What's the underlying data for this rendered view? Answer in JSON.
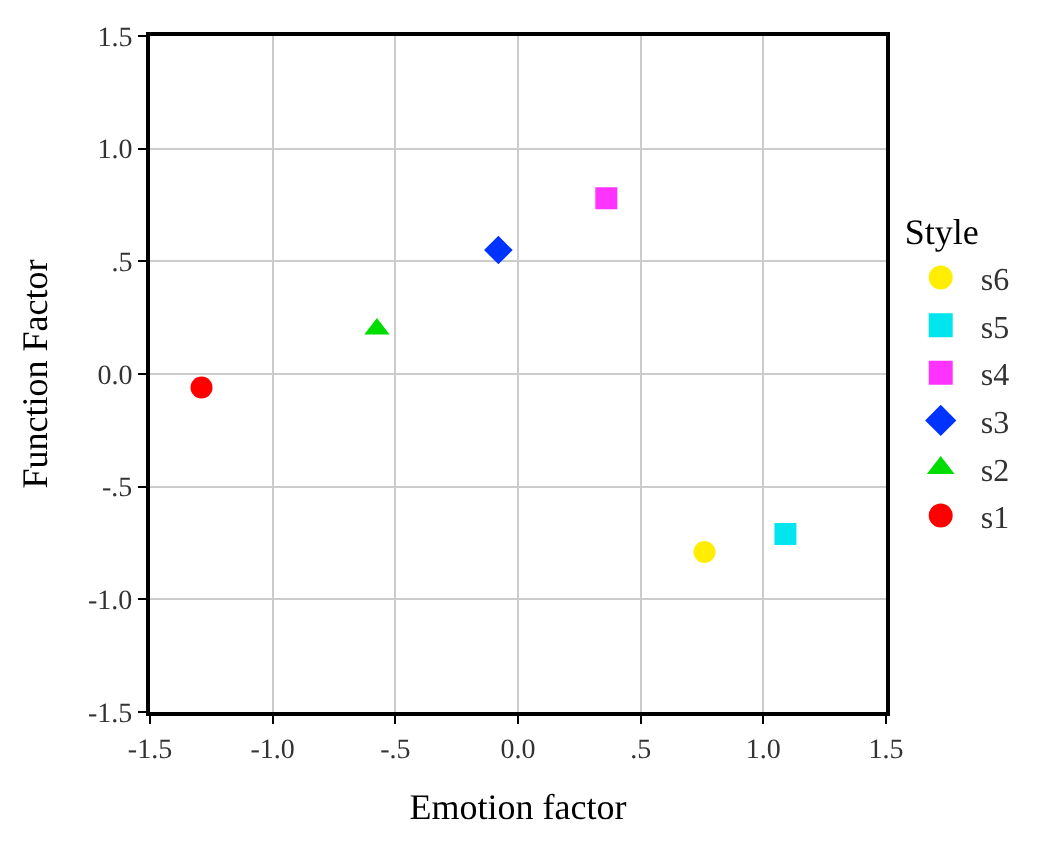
{
  "chart_data": {
    "type": "scatter",
    "xlabel": "Emotion factor",
    "ylabel": "Function Factor",
    "legend_title": "Style",
    "series": [
      {
        "name": "s1",
        "color": "#ff0000",
        "marker": "circle",
        "x": [
          -1.29
        ],
        "values": [
          -0.06
        ]
      },
      {
        "name": "s2",
        "color": "#00dd00",
        "marker": "triangle",
        "x": [
          -0.575
        ],
        "values": [
          0.2
        ]
      },
      {
        "name": "s3",
        "color": "#0033ff",
        "marker": "diamond",
        "x": [
          -0.08
        ],
        "values": [
          0.55
        ]
      },
      {
        "name": "s4",
        "color": "#ff33ff",
        "marker": "square",
        "x": [
          0.36
        ],
        "values": [
          0.78
        ]
      },
      {
        "name": "s5",
        "color": "#00e5ee",
        "marker": "square",
        "x": [
          1.09
        ],
        "values": [
          -0.71
        ]
      },
      {
        "name": "s6",
        "color": "#ffee00",
        "marker": "circle",
        "x": [
          0.76
        ],
        "values": [
          -0.79
        ]
      }
    ],
    "xlim": [
      -1.5,
      1.5
    ],
    "ylim": [
      -1.5,
      1.5
    ],
    "xticks": [
      -1.5,
      {
        "value": -1,
        "label": "-1.0"
      },
      {
        "value": -0.5,
        "label": "-.5"
      },
      {
        "value": 0,
        "label": "0.0"
      },
      {
        "value": 0.5,
        "label": ".5"
      },
      {
        "value": 1,
        "label": "1.0"
      },
      1.5
    ],
    "yticks": [
      -1.5,
      {
        "value": -1,
        "label": "-1.0"
      },
      {
        "value": -0.5,
        "label": "-.5"
      },
      {
        "value": 0,
        "label": "0.0"
      },
      {
        "value": 0.5,
        "label": ".5"
      },
      {
        "value": 1,
        "label": "1.0"
      },
      1.5
    ],
    "grid": true,
    "legend": "right"
  }
}
